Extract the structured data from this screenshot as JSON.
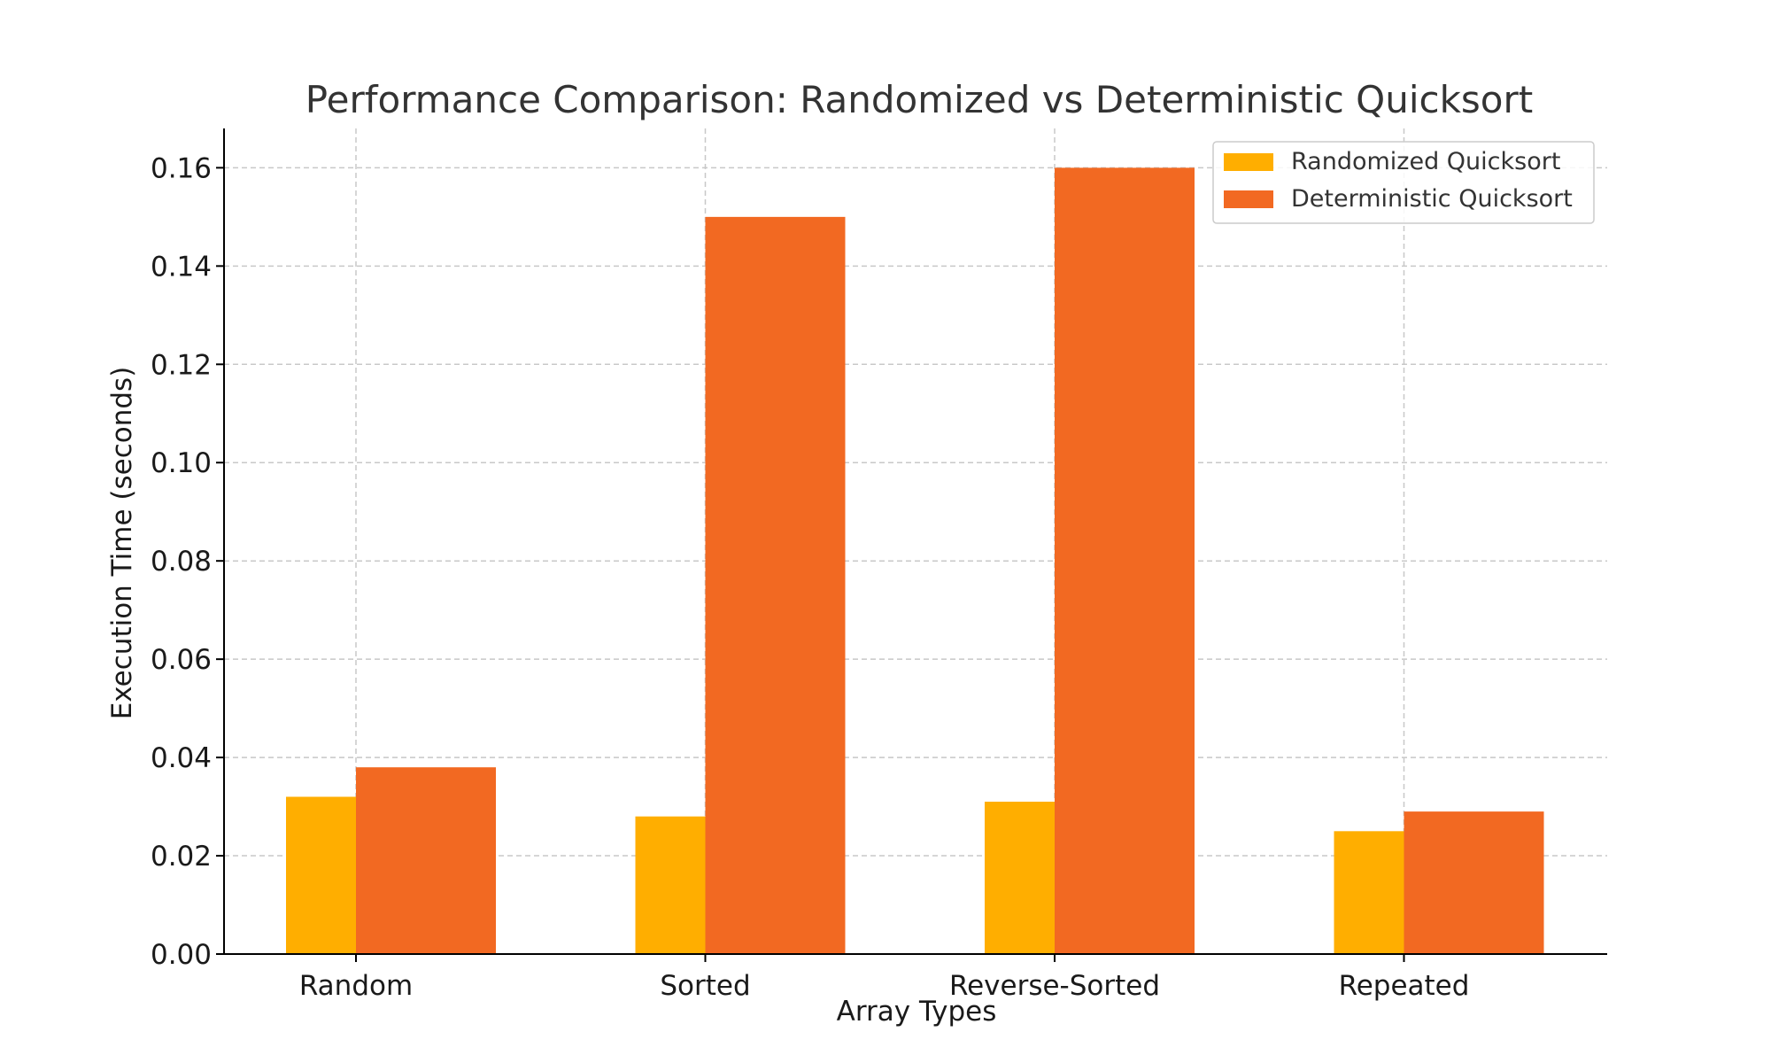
{
  "chart_data": {
    "type": "bar",
    "title": "Performance Comparison: Randomized vs Deterministic Quicksort",
    "xlabel": "Array Types",
    "ylabel": "Execution Time (seconds)",
    "categories": [
      "Random",
      "Sorted",
      "Reverse-Sorted",
      "Repeated"
    ],
    "series": [
      {
        "name": "Randomized Quicksort",
        "color": "#FFAE00",
        "values": [
          0.032,
          0.028,
          0.031,
          0.025
        ]
      },
      {
        "name": "Deterministic Quicksort",
        "color": "#F26922",
        "values": [
          0.038,
          0.15,
          0.16,
          0.029
        ]
      }
    ],
    "ylim": [
      0,
      0.168
    ],
    "yticks": [
      "0.00",
      "0.02",
      "0.04",
      "0.06",
      "0.08",
      "0.10",
      "0.12",
      "0.14",
      "0.16"
    ],
    "grid": true,
    "legend_position": "top-right"
  }
}
